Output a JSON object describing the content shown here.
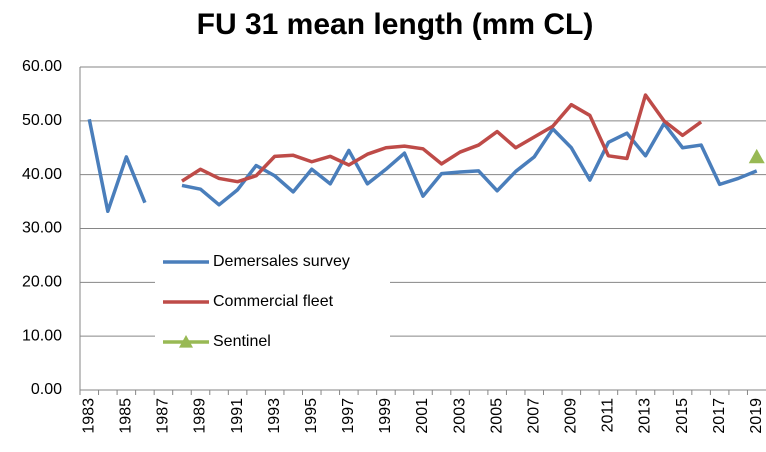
{
  "chart_data": {
    "type": "line",
    "title": "FU 31 mean length (mm CL)",
    "categories": [
      "1983",
      null,
      "1985",
      null,
      "1987",
      null,
      "1989",
      null,
      "1991",
      null,
      "1993",
      null,
      "1995",
      null,
      "1997",
      null,
      "1999",
      null,
      "2001",
      null,
      "2003",
      null,
      "2005",
      null,
      "2007",
      null,
      "2009",
      null,
      "2011",
      null,
      "2013",
      null,
      "2015",
      null,
      "2017",
      null,
      "2019"
    ],
    "series": [
      {
        "name": "Demersales survey",
        "color": "#4a7ebb",
        "values": [
          50.3,
          33.2,
          43.3,
          34.8,
          null,
          38.0,
          37.3,
          34.4,
          37.2,
          41.7,
          39.8,
          36.8,
          41.0,
          38.3,
          44.5,
          38.3,
          41.0,
          44.0,
          36.0,
          40.2,
          40.5,
          40.7,
          37.0,
          40.6,
          43.3,
          48.5,
          45.0,
          39.0,
          46.0,
          47.7,
          43.5,
          49.5,
          45.0,
          45.5,
          38.2,
          39.3,
          40.7
        ]
      },
      {
        "name": "Commercial fleet",
        "color": "#be4b48",
        "values": [
          null,
          null,
          null,
          null,
          null,
          38.8,
          41.0,
          39.3,
          38.7,
          39.8,
          43.4,
          43.6,
          42.4,
          43.4,
          41.8,
          43.8,
          45.0,
          45.3,
          44.8,
          42.0,
          44.2,
          45.5,
          48.0,
          45.0,
          47.0,
          49.0,
          53.0,
          51.0,
          43.5,
          43.0,
          54.8,
          50.0,
          47.3,
          49.8,
          null,
          null,
          null
        ]
      },
      {
        "name": "Sentinel",
        "color": "#98b954",
        "marker": "triangle",
        "values": [
          null,
          null,
          null,
          null,
          null,
          null,
          null,
          null,
          null,
          null,
          null,
          null,
          null,
          null,
          null,
          null,
          null,
          null,
          null,
          null,
          null,
          null,
          null,
          null,
          null,
          null,
          null,
          null,
          null,
          null,
          null,
          null,
          null,
          null,
          null,
          null,
          43.3
        ]
      }
    ],
    "ylim": [
      0,
      60
    ],
    "yticks": [
      {
        "value": 0,
        "label": "0.00"
      },
      {
        "value": 10,
        "label": "10.00"
      },
      {
        "value": 20,
        "label": "20.00"
      },
      {
        "value": 30,
        "label": "30.00"
      },
      {
        "value": 40,
        "label": "40.00"
      },
      {
        "value": 50,
        "label": "50.00"
      },
      {
        "value": 60,
        "label": "60.00"
      }
    ],
    "grid": true,
    "legend": "center-left"
  }
}
